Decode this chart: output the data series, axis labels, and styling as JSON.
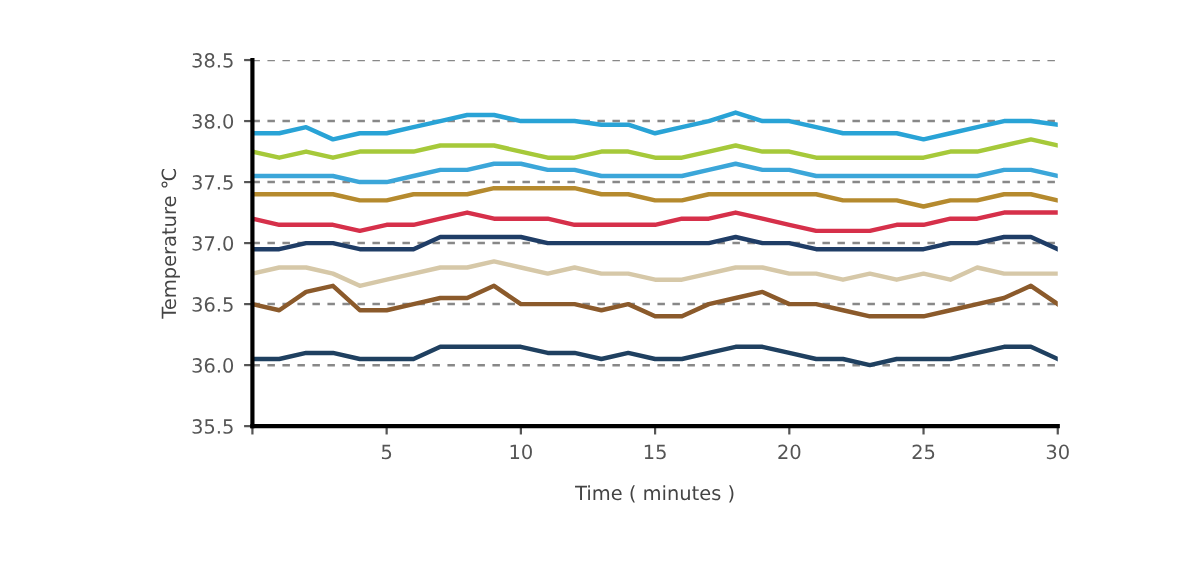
{
  "chart_data": {
    "type": "line",
    "xlabel": "Time ( minutes )",
    "ylabel": "Temperature ℃",
    "x": [
      0,
      1,
      2,
      3,
      4,
      5,
      6,
      7,
      8,
      9,
      10,
      11,
      12,
      13,
      14,
      15,
      16,
      17,
      18,
      19,
      20,
      21,
      22,
      23,
      24,
      25,
      26,
      27,
      28,
      29,
      30
    ],
    "xlim": [
      0,
      30
    ],
    "xticks": [
      {
        "value": 0,
        "label": null
      },
      5,
      10,
      15,
      20,
      25,
      30
    ],
    "ylim": [
      35.5,
      38.5
    ],
    "yticks": [
      {
        "value": 35.5,
        "label": "35.5"
      },
      {
        "value": 36,
        "label": "36.0"
      },
      {
        "value": 36.5,
        "label": "36.5"
      },
      {
        "value": 37,
        "label": "37.0"
      },
      {
        "value": 37.5,
        "label": "37.5"
      },
      {
        "value": 38,
        "label": "38.0"
      },
      {
        "value": 38.5,
        "label": "38.5"
      }
    ],
    "grid": "y",
    "marker": "none",
    "line_style": "solid",
    "series": [
      {
        "color": "#29a3d6",
        "values": [
          37.9,
          37.9,
          37.95,
          37.85,
          37.9,
          37.9,
          37.95,
          38.0,
          38.05,
          38.05,
          38.0,
          38.0,
          38.0,
          37.97,
          37.97,
          37.9,
          37.95,
          38.0,
          38.07,
          38.0,
          38.0,
          37.95,
          37.9,
          37.9,
          37.9,
          37.85,
          37.9,
          37.95,
          38.0,
          38.0,
          37.97
        ]
      },
      {
        "color": "#a6c93a",
        "values": [
          37.75,
          37.7,
          37.75,
          37.7,
          37.75,
          37.75,
          37.75,
          37.8,
          37.8,
          37.8,
          37.75,
          37.7,
          37.7,
          37.75,
          37.75,
          37.7,
          37.7,
          37.75,
          37.8,
          37.75,
          37.75,
          37.7,
          37.7,
          37.7,
          37.7,
          37.7,
          37.75,
          37.75,
          37.8,
          37.85,
          37.8
        ]
      },
      {
        "color": "#3ba6d9",
        "values": [
          37.55,
          37.55,
          37.55,
          37.55,
          37.5,
          37.5,
          37.55,
          37.6,
          37.6,
          37.65,
          37.65,
          37.6,
          37.6,
          37.55,
          37.55,
          37.55,
          37.55,
          37.6,
          37.65,
          37.6,
          37.6,
          37.55,
          37.55,
          37.55,
          37.55,
          37.55,
          37.55,
          37.55,
          37.6,
          37.6,
          37.55
        ]
      },
      {
        "color": "#b58a2e",
        "values": [
          37.4,
          37.4,
          37.4,
          37.4,
          37.35,
          37.35,
          37.4,
          37.4,
          37.4,
          37.45,
          37.45,
          37.45,
          37.45,
          37.4,
          37.4,
          37.35,
          37.35,
          37.4,
          37.4,
          37.4,
          37.4,
          37.4,
          37.35,
          37.35,
          37.35,
          37.3,
          37.35,
          37.35,
          37.4,
          37.4,
          37.35
        ]
      },
      {
        "color": "#d6304a",
        "values": [
          37.2,
          37.15,
          37.15,
          37.15,
          37.1,
          37.15,
          37.15,
          37.2,
          37.25,
          37.2,
          37.2,
          37.2,
          37.15,
          37.15,
          37.15,
          37.15,
          37.2,
          37.2,
          37.25,
          37.2,
          37.15,
          37.1,
          37.1,
          37.1,
          37.15,
          37.15,
          37.2,
          37.2,
          37.25,
          37.25,
          37.25
        ]
      },
      {
        "color": "#1f3d66",
        "values": [
          36.95,
          36.95,
          37.0,
          37.0,
          36.95,
          36.95,
          36.95,
          37.05,
          37.05,
          37.05,
          37.05,
          37.0,
          37.0,
          37.0,
          37.0,
          37.0,
          37.0,
          37.0,
          37.05,
          37.0,
          37.0,
          36.95,
          36.95,
          36.95,
          36.95,
          36.95,
          37.0,
          37.0,
          37.05,
          37.05,
          36.95
        ]
      },
      {
        "color": "#d6c8a8",
        "values": [
          36.75,
          36.8,
          36.8,
          36.75,
          36.65,
          36.7,
          36.75,
          36.8,
          36.8,
          36.85,
          36.8,
          36.75,
          36.8,
          36.75,
          36.75,
          36.7,
          36.7,
          36.75,
          36.8,
          36.8,
          36.75,
          36.75,
          36.7,
          36.75,
          36.7,
          36.75,
          36.7,
          36.8,
          36.75,
          36.75,
          36.75
        ]
      },
      {
        "color": "#8b5a2b",
        "values": [
          36.5,
          36.45,
          36.6,
          36.65,
          36.45,
          36.45,
          36.5,
          36.55,
          36.55,
          36.65,
          36.5,
          36.5,
          36.5,
          36.45,
          36.5,
          36.4,
          36.4,
          36.5,
          36.55,
          36.6,
          36.5,
          36.5,
          36.45,
          36.4,
          36.4,
          36.4,
          36.45,
          36.5,
          36.55,
          36.65,
          36.5
        ]
      },
      {
        "color": "#1f4060",
        "values": [
          36.05,
          36.05,
          36.1,
          36.1,
          36.05,
          36.05,
          36.05,
          36.15,
          36.15,
          36.15,
          36.15,
          36.1,
          36.1,
          36.05,
          36.1,
          36.05,
          36.05,
          36.1,
          36.15,
          36.15,
          36.1,
          36.05,
          36.05,
          36.0,
          36.05,
          36.05,
          36.05,
          36.1,
          36.15,
          36.15,
          36.05
        ]
      }
    ]
  }
}
